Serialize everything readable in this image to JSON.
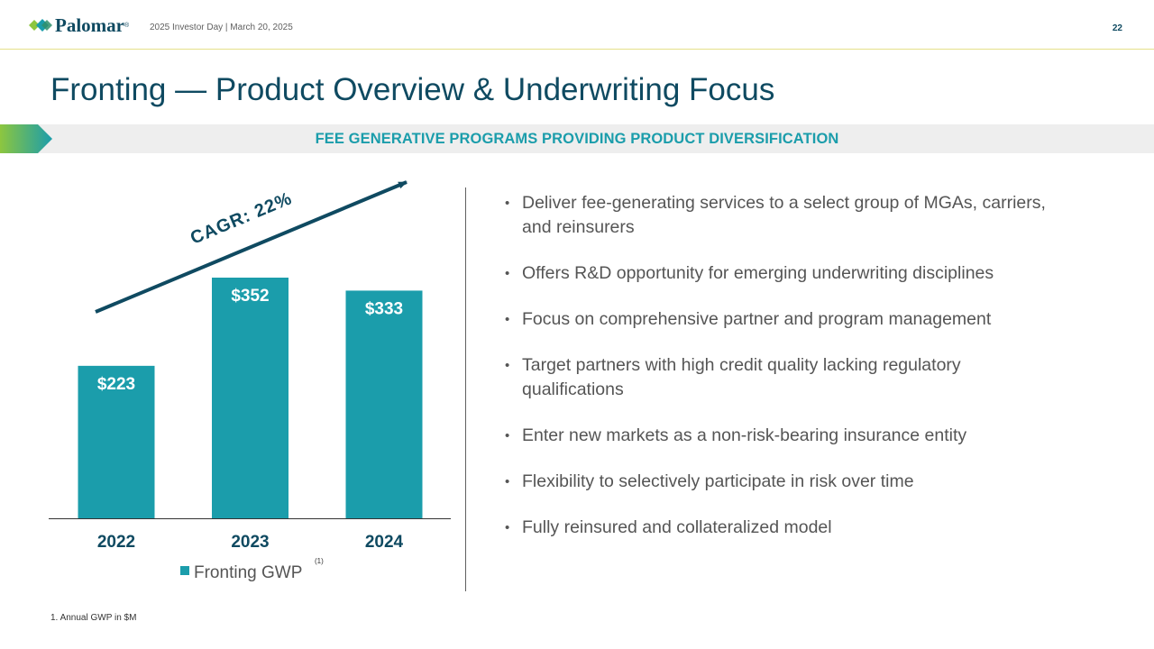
{
  "header": {
    "logo_text": "Palomar",
    "logo_reg": "®",
    "meta": "2025 Investor Day | March 20, 2025",
    "page_number": "22"
  },
  "title": "Fronting — Product Overview & Underwriting Focus",
  "banner": "FEE GENERATIVE PROGRAMS PROVIDING PRODUCT DIVERSIFICATION",
  "colors": {
    "navy": "#0f4a61",
    "teal": "#1b9dab",
    "green": "#8dc63f"
  },
  "chart_data": {
    "type": "bar",
    "categories": [
      "2022",
      "2023",
      "2024"
    ],
    "values": [
      223,
      352,
      333
    ],
    "value_labels": [
      "$223",
      "$352",
      "$333"
    ],
    "series_name": "Fronting GWP",
    "series_superscript": "(1)",
    "annotation": "CAGR: 22%",
    "ylim": [
      0,
      400
    ],
    "color": "#1b9dab"
  },
  "bullets": [
    "Deliver fee-generating services to a select group of MGAs, carriers, and reinsurers",
    "Offers R&D opportunity for emerging underwriting disciplines",
    "Focus on comprehensive partner and program management",
    "Target partners with high credit quality lacking regulatory qualifications",
    "Enter new markets as a non-risk-bearing insurance entity",
    "Flexibility to selectively participate in risk over time",
    "Fully reinsured and collateralized model"
  ],
  "footnote": "1. Annual GWP in $M"
}
